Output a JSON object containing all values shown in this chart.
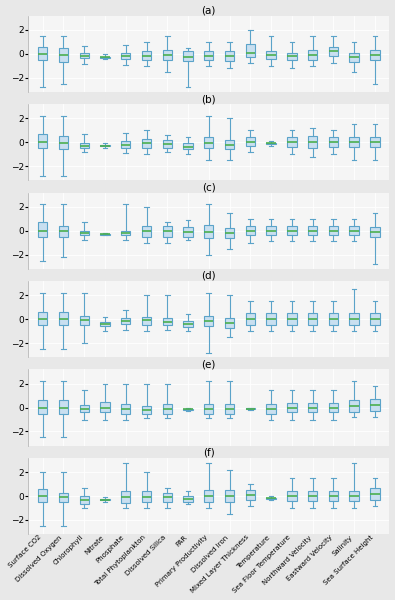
{
  "labels": [
    "Surface CO2",
    "Dissolved Oxygen",
    "Chlorophyll",
    "Nitrate",
    "Phosphate",
    "Total Phytoplankton",
    "Dissolved Silica",
    "PAR",
    "Primary Productivity",
    "Dissolved Iron",
    "Mixed Layer Thickness",
    "Temperature",
    "Sea Floor Temperature",
    "Northward Velocity",
    "Eastward Velocity",
    "Salinity",
    "Sea Surface Height"
  ],
  "panel_labels": [
    "(a)",
    "(b)",
    "(c)",
    "(d)",
    "(e)",
    "(f)"
  ],
  "panels": [
    {
      "boxes": [
        {
          "med": 0.0,
          "q1": -0.55,
          "q3": 0.55,
          "whislo": -2.8,
          "whishi": 1.5
        },
        {
          "med": -0.1,
          "q1": -0.65,
          "q3": 0.45,
          "whislo": -2.5,
          "whishi": 1.5
        },
        {
          "med": -0.2,
          "q1": -0.38,
          "q3": 0.05,
          "whislo": -0.85,
          "whishi": 0.65
        },
        {
          "med": -0.28,
          "q1": -0.33,
          "q3": -0.23,
          "whislo": -0.45,
          "whishi": -0.05
        },
        {
          "med": -0.2,
          "q1": -0.4,
          "q3": 0.1,
          "whislo": -0.9,
          "whishi": 0.7
        },
        {
          "med": -0.15,
          "q1": -0.5,
          "q3": 0.2,
          "whislo": -1.0,
          "whishi": 1.0
        },
        {
          "med": -0.1,
          "q1": -0.5,
          "q3": 0.3,
          "whislo": -1.5,
          "whishi": 1.5
        },
        {
          "med": -0.3,
          "q1": -0.6,
          "q3": 0.2,
          "whislo": -2.8,
          "whishi": 0.5
        },
        {
          "med": -0.2,
          "q1": -0.5,
          "q3": 0.2,
          "whislo": -1.0,
          "whishi": 1.0
        },
        {
          "med": -0.2,
          "q1": -0.6,
          "q3": 0.2,
          "whislo": -1.2,
          "whishi": 1.0
        },
        {
          "med": 0.1,
          "q1": -0.3,
          "q3": 0.8,
          "whislo": -0.8,
          "whishi": 2.0
        },
        {
          "med": -0.1,
          "q1": -0.4,
          "q3": 0.2,
          "whislo": -1.0,
          "whishi": 1.5
        },
        {
          "med": -0.2,
          "q1": -0.5,
          "q3": 0.1,
          "whislo": -1.2,
          "whishi": 1.0
        },
        {
          "med": -0.1,
          "q1": -0.5,
          "q3": 0.3,
          "whislo": -1.0,
          "whishi": 1.5
        },
        {
          "med": 0.2,
          "q1": -0.2,
          "q3": 0.6,
          "whislo": -0.8,
          "whishi": 1.5
        },
        {
          "med": -0.3,
          "q1": -0.7,
          "q3": 0.1,
          "whislo": -1.5,
          "whishi": 1.0
        },
        {
          "med": -0.1,
          "q1": -0.5,
          "q3": 0.3,
          "whislo": -2.5,
          "whishi": 1.5
        }
      ]
    },
    {
      "boxes": [
        {
          "med": 0.0,
          "q1": -0.5,
          "q3": 0.7,
          "whislo": -2.8,
          "whishi": 2.2
        },
        {
          "med": -0.05,
          "q1": -0.6,
          "q3": 0.5,
          "whislo": -2.8,
          "whishi": 2.2
        },
        {
          "med": -0.3,
          "q1": -0.5,
          "q3": -0.1,
          "whislo": -0.8,
          "whishi": 0.7
        },
        {
          "med": -0.3,
          "q1": -0.35,
          "q3": -0.25,
          "whislo": -0.45,
          "whishi": -0.1
        },
        {
          "med": -0.2,
          "q1": -0.5,
          "q3": 0.1,
          "whislo": -0.9,
          "whishi": 0.8
        },
        {
          "med": -0.1,
          "q1": -0.5,
          "q3": 0.3,
          "whislo": -1.0,
          "whishi": 1.0
        },
        {
          "med": -0.15,
          "q1": -0.5,
          "q3": 0.2,
          "whislo": -0.8,
          "whishi": 0.6
        },
        {
          "med": -0.4,
          "q1": -0.6,
          "q3": -0.1,
          "whislo": -1.0,
          "whishi": 0.4
        },
        {
          "med": -0.1,
          "q1": -0.5,
          "q3": 0.4,
          "whislo": -1.5,
          "whishi": 2.2
        },
        {
          "med": -0.2,
          "q1": -0.6,
          "q3": 0.2,
          "whislo": -1.5,
          "whishi": 2.0
        },
        {
          "med": 0.0,
          "q1": -0.3,
          "q3": 0.4,
          "whislo": -0.8,
          "whishi": 1.0
        },
        {
          "med": -0.1,
          "q1": -0.15,
          "q3": -0.05,
          "whislo": -0.3,
          "whishi": 0.1
        },
        {
          "med": 0.0,
          "q1": -0.4,
          "q3": 0.4,
          "whislo": -1.0,
          "whishi": 1.0
        },
        {
          "med": 0.0,
          "q1": -0.5,
          "q3": 0.5,
          "whislo": -1.2,
          "whishi": 1.2
        },
        {
          "med": 0.0,
          "q1": -0.4,
          "q3": 0.4,
          "whislo": -1.0,
          "whishi": 1.0
        },
        {
          "med": 0.0,
          "q1": -0.4,
          "q3": 0.4,
          "whislo": -1.5,
          "whishi": 1.5
        },
        {
          "med": 0.0,
          "q1": -0.4,
          "q3": 0.4,
          "whislo": -1.5,
          "whishi": 1.5
        }
      ]
    },
    {
      "boxes": [
        {
          "med": 0.0,
          "q1": -0.5,
          "q3": 0.7,
          "whislo": -2.5,
          "whishi": 2.2
        },
        {
          "med": -0.05,
          "q1": -0.5,
          "q3": 0.4,
          "whislo": -2.2,
          "whishi": 2.2
        },
        {
          "med": -0.2,
          "q1": -0.4,
          "q3": -0.05,
          "whislo": -0.8,
          "whishi": 0.7
        },
        {
          "med": -0.3,
          "q1": -0.33,
          "q3": -0.27,
          "whislo": -0.4,
          "whishi": -0.15
        },
        {
          "med": -0.15,
          "q1": -0.4,
          "q3": 0.0,
          "whislo": -0.8,
          "whishi": 2.2
        },
        {
          "med": -0.05,
          "q1": -0.5,
          "q3": 0.4,
          "whislo": -1.0,
          "whishi": 2.0
        },
        {
          "med": 0.0,
          "q1": -0.5,
          "q3": 0.4,
          "whislo": -1.0,
          "whishi": 0.7
        },
        {
          "med": -0.1,
          "q1": -0.5,
          "q3": 0.3,
          "whislo": -0.8,
          "whishi": 0.9
        },
        {
          "med": -0.1,
          "q1": -0.6,
          "q3": 0.5,
          "whislo": -2.0,
          "whishi": 2.2
        },
        {
          "med": -0.15,
          "q1": -0.6,
          "q3": 0.2,
          "whislo": -1.5,
          "whishi": 1.5
        },
        {
          "med": 0.0,
          "q1": -0.4,
          "q3": 0.4,
          "whislo": -1.0,
          "whishi": 1.0
        },
        {
          "med": 0.0,
          "q1": -0.4,
          "q3": 0.4,
          "whislo": -0.9,
          "whishi": 1.0
        },
        {
          "med": 0.0,
          "q1": -0.4,
          "q3": 0.4,
          "whislo": -0.9,
          "whishi": 1.0
        },
        {
          "med": 0.0,
          "q1": -0.4,
          "q3": 0.4,
          "whislo": -0.9,
          "whishi": 1.0
        },
        {
          "med": 0.0,
          "q1": -0.4,
          "q3": 0.4,
          "whislo": -0.9,
          "whishi": 1.0
        },
        {
          "med": 0.0,
          "q1": -0.4,
          "q3": 0.4,
          "whislo": -0.9,
          "whishi": 1.0
        },
        {
          "med": -0.1,
          "q1": -0.5,
          "q3": 0.3,
          "whislo": -2.8,
          "whishi": 1.5
        }
      ]
    },
    {
      "boxes": [
        {
          "med": 0.0,
          "q1": -0.5,
          "q3": 0.6,
          "whislo": -2.5,
          "whishi": 2.2
        },
        {
          "med": 0.0,
          "q1": -0.5,
          "q3": 0.6,
          "whislo": -2.5,
          "whishi": 2.2
        },
        {
          "med": -0.1,
          "q1": -0.5,
          "q3": 0.3,
          "whislo": -2.0,
          "whishi": 2.2
        },
        {
          "med": -0.4,
          "q1": -0.6,
          "q3": -0.2,
          "whislo": -1.0,
          "whishi": 0.2
        },
        {
          "med": -0.15,
          "q1": -0.4,
          "q3": 0.1,
          "whislo": -0.9,
          "whishi": 0.8
        },
        {
          "med": -0.1,
          "q1": -0.45,
          "q3": 0.2,
          "whislo": -1.0,
          "whishi": 2.0
        },
        {
          "med": -0.2,
          "q1": -0.5,
          "q3": 0.1,
          "whislo": -0.9,
          "whishi": 2.0
        },
        {
          "med": -0.4,
          "q1": -0.65,
          "q3": -0.15,
          "whislo": -1.0,
          "whishi": 0.4
        },
        {
          "med": -0.15,
          "q1": -0.6,
          "q3": 0.3,
          "whislo": -2.8,
          "whishi": 2.2
        },
        {
          "med": -0.3,
          "q1": -0.7,
          "q3": 0.1,
          "whislo": -1.5,
          "whishi": 2.0
        },
        {
          "med": 0.0,
          "q1": -0.5,
          "q3": 0.5,
          "whislo": -1.0,
          "whishi": 1.5
        },
        {
          "med": 0.0,
          "q1": -0.5,
          "q3": 0.5,
          "whislo": -1.0,
          "whishi": 1.5
        },
        {
          "med": 0.0,
          "q1": -0.5,
          "q3": 0.5,
          "whislo": -1.0,
          "whishi": 1.5
        },
        {
          "med": 0.0,
          "q1": -0.5,
          "q3": 0.5,
          "whislo": -1.0,
          "whishi": 1.5
        },
        {
          "med": 0.0,
          "q1": -0.5,
          "q3": 0.5,
          "whislo": -1.0,
          "whishi": 1.5
        },
        {
          "med": 0.0,
          "q1": -0.5,
          "q3": 0.5,
          "whislo": -1.0,
          "whishi": 2.5
        },
        {
          "med": 0.0,
          "q1": -0.5,
          "q3": 0.5,
          "whislo": -1.0,
          "whishi": 1.5
        }
      ]
    },
    {
      "boxes": [
        {
          "med": 0.0,
          "q1": -0.5,
          "q3": 0.6,
          "whislo": -2.5,
          "whishi": 2.2
        },
        {
          "med": 0.0,
          "q1": -0.5,
          "q3": 0.6,
          "whislo": -2.5,
          "whishi": 2.2
        },
        {
          "med": -0.1,
          "q1": -0.4,
          "q3": 0.2,
          "whislo": -1.0,
          "whishi": 1.5
        },
        {
          "med": 0.0,
          "q1": -0.4,
          "q3": 0.5,
          "whislo": -1.0,
          "whishi": 2.0
        },
        {
          "med": -0.1,
          "q1": -0.5,
          "q3": 0.3,
          "whislo": -1.0,
          "whishi": 2.0
        },
        {
          "med": -0.2,
          "q1": -0.5,
          "q3": 0.1,
          "whislo": -0.9,
          "whishi": 2.0
        },
        {
          "med": -0.1,
          "q1": -0.5,
          "q3": 0.3,
          "whislo": -0.9,
          "whishi": 2.0
        },
        {
          "med": -0.15,
          "q1": -0.2,
          "q3": -0.1,
          "whislo": -0.3,
          "whishi": 0.0
        },
        {
          "med": -0.1,
          "q1": -0.5,
          "q3": 0.3,
          "whislo": -0.9,
          "whishi": 2.2
        },
        {
          "med": -0.1,
          "q1": -0.5,
          "q3": 0.3,
          "whislo": -0.9,
          "whishi": 2.2
        },
        {
          "med": -0.1,
          "q1": -0.15,
          "q3": -0.05,
          "whislo": -0.2,
          "whishi": 0.0
        },
        {
          "med": -0.1,
          "q1": -0.5,
          "q3": 0.3,
          "whislo": -1.0,
          "whishi": 1.5
        },
        {
          "med": 0.0,
          "q1": -0.4,
          "q3": 0.4,
          "whislo": -1.0,
          "whishi": 1.5
        },
        {
          "med": 0.0,
          "q1": -0.4,
          "q3": 0.4,
          "whislo": -1.0,
          "whishi": 1.5
        },
        {
          "med": 0.0,
          "q1": -0.4,
          "q3": 0.4,
          "whislo": -1.0,
          "whishi": 1.5
        },
        {
          "med": 0.1,
          "q1": -0.4,
          "q3": 0.6,
          "whislo": -0.8,
          "whishi": 2.2
        },
        {
          "med": 0.2,
          "q1": -0.3,
          "q3": 0.7,
          "whislo": -0.8,
          "whishi": 1.8
        }
      ]
    },
    {
      "boxes": [
        {
          "med": 0.0,
          "q1": -0.5,
          "q3": 0.6,
          "whislo": -2.5,
          "whishi": 2.0
        },
        {
          "med": -0.1,
          "q1": -0.5,
          "q3": 0.3,
          "whislo": -2.5,
          "whishi": 2.0
        },
        {
          "med": -0.3,
          "q1": -0.7,
          "q3": 0.0,
          "whislo": -1.0,
          "whishi": 0.7
        },
        {
          "med": -0.3,
          "q1": -0.35,
          "q3": -0.25,
          "whislo": -0.5,
          "whishi": -0.1
        },
        {
          "med": -0.1,
          "q1": -0.6,
          "q3": 0.4,
          "whislo": -1.0,
          "whishi": 2.8
        },
        {
          "med": -0.05,
          "q1": -0.5,
          "q3": 0.4,
          "whislo": -1.0,
          "whishi": 2.0
        },
        {
          "med": -0.1,
          "q1": -0.5,
          "q3": 0.3,
          "whislo": -1.0,
          "whishi": 0.7
        },
        {
          "med": -0.25,
          "q1": -0.5,
          "q3": 0.0,
          "whislo": -0.7,
          "whishi": 0.4
        },
        {
          "med": 0.0,
          "q1": -0.5,
          "q3": 0.5,
          "whislo": -1.0,
          "whishi": 2.8
        },
        {
          "med": 0.0,
          "q1": -0.5,
          "q3": 0.5,
          "whislo": -1.5,
          "whishi": 2.2
        },
        {
          "med": 0.1,
          "q1": -0.3,
          "q3": 0.5,
          "whislo": -0.8,
          "whishi": 1.0
        },
        {
          "med": -0.2,
          "q1": -0.25,
          "q3": -0.15,
          "whislo": -0.3,
          "whishi": 0.0
        },
        {
          "med": 0.0,
          "q1": -0.4,
          "q3": 0.4,
          "whislo": -1.0,
          "whishi": 1.5
        },
        {
          "med": 0.0,
          "q1": -0.4,
          "q3": 0.4,
          "whislo": -1.0,
          "whishi": 1.5
        },
        {
          "med": 0.0,
          "q1": -0.4,
          "q3": 0.4,
          "whislo": -1.0,
          "whishi": 1.5
        },
        {
          "med": 0.0,
          "q1": -0.4,
          "q3": 0.4,
          "whislo": -1.0,
          "whishi": 2.8
        },
        {
          "med": 0.2,
          "q1": -0.3,
          "q3": 0.7,
          "whislo": -0.8,
          "whishi": 1.5
        }
      ]
    }
  ],
  "box_facecolor": "#c8dff0",
  "box_edgecolor": "#5ba3c9",
  "median_color": "#4caf50",
  "whisker_color": "#5ba3c9",
  "cap_color": "#5ba3c9",
  "bg_color": "#e8e8e8",
  "panel_bg_color": "#f5f5f5",
  "grid_color": "#ffffff",
  "ylim": [
    -3.2,
    3.2
  ],
  "yticks": [
    -2,
    0,
    2
  ],
  "figsize": [
    3.95,
    6.0
  ],
  "dpi": 100,
  "box_width": 0.45,
  "label_fontsize": 5.0,
  "title_fontsize": 7.5,
  "ytick_fontsize": 6.5
}
